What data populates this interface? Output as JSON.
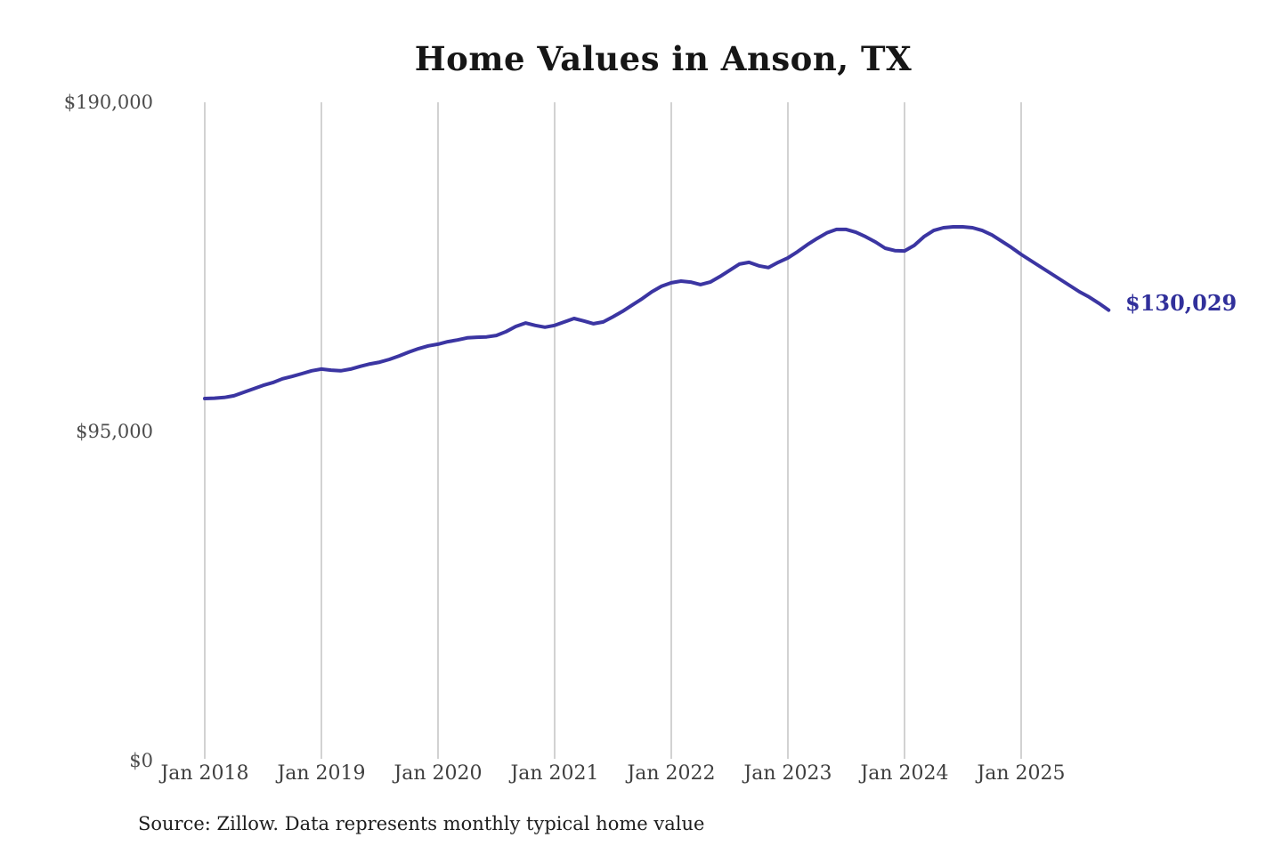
{
  "chart_data": {
    "type": "line",
    "title": "Home Values in Anson, TX",
    "source": "Source: Zillow. Data represents monthly typical home value",
    "end_annotation": "$130,029",
    "xlabel": "",
    "ylabel": "",
    "ylim": [
      0,
      190000
    ],
    "grid": "vertical-only",
    "legend": "none",
    "x_ticks": [
      "Jan 2018",
      "Jan 2019",
      "Jan 2020",
      "Jan 2021",
      "Jan 2022",
      "Jan 2023",
      "Jan 2024",
      "Jan 2025"
    ],
    "y_ticks": [
      {
        "label": "$190,000",
        "value": 190000
      },
      {
        "label": "$95,000",
        "value": 95000
      },
      {
        "label": "$0",
        "value": 0
      }
    ],
    "series": [
      {
        "name": "Monthly typical home value",
        "start_month": "2018-01",
        "end_month": "2025-10",
        "values": [
          104500,
          104600,
          104800,
          105300,
          106300,
          107300,
          108300,
          109100,
          110200,
          110900,
          111700,
          112500,
          113000,
          112700,
          112500,
          113000,
          113800,
          114500,
          115000,
          115800,
          116800,
          117900,
          118900,
          119700,
          120200,
          120900,
          121400,
          122000,
          122200,
          122300,
          122700,
          123800,
          125300,
          126300,
          125600,
          125100,
          125600,
          126600,
          127600,
          126900,
          126100,
          126600,
          128100,
          129700,
          131500,
          133300,
          135300,
          136900,
          137900,
          138400,
          138100,
          137400,
          138100,
          139700,
          141500,
          143300,
          143800,
          142800,
          142300,
          143800,
          145100,
          146900,
          148900,
          150700,
          152300,
          153300,
          153300,
          152500,
          151200,
          149700,
          147900,
          147200,
          147100,
          148700,
          151200,
          153000,
          153800,
          154050,
          154050,
          153800,
          153000,
          151700,
          149900,
          148100,
          146100,
          144300,
          142500,
          140700,
          138900,
          137100,
          135300,
          133800,
          132000,
          130029
        ]
      }
    ],
    "colors": {
      "line": "#3b35a2",
      "end_label": "#31309b",
      "gridline": "#c6c6c6",
      "title_text": "#161616",
      "axis_text": "#4c4c4c",
      "source_text": "#1d1d1d",
      "background": "#ffffff"
    }
  }
}
